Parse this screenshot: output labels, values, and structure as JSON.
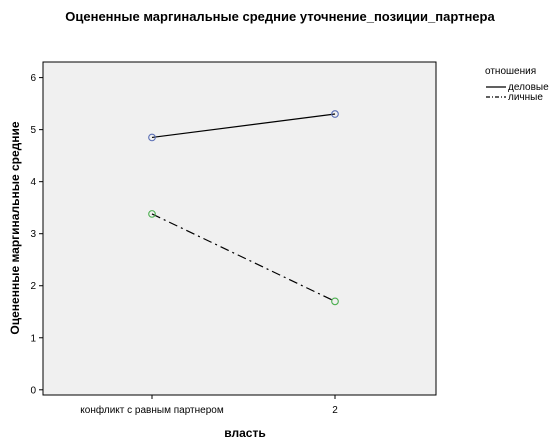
{
  "chart_data": {
    "type": "line",
    "title": "Оцененные маргинальные средние уточнение_позиции_партнера",
    "xlabel": "власть",
    "ylabel": "Оцененные маргинальные средние",
    "categories": [
      "конфликт с равным партнером",
      "2"
    ],
    "ylim": [
      -0.1,
      6.3
    ],
    "yticks": [
      0,
      1,
      2,
      3,
      4,
      5,
      6
    ],
    "grid": false,
    "legend": {
      "title": "отношения",
      "placement": "right"
    },
    "series": [
      {
        "name": "деловые",
        "values": [
          4.85,
          5.3
        ],
        "line_color": "#000000",
        "marker_color": "#5b6fb5",
        "dash": "solid"
      },
      {
        "name": "личные",
        "values": [
          3.38,
          1.7
        ],
        "line_color": "#000000",
        "marker_color": "#4caf50",
        "dash": "dashdot"
      }
    ],
    "plot_background": "#f0f0f0"
  }
}
